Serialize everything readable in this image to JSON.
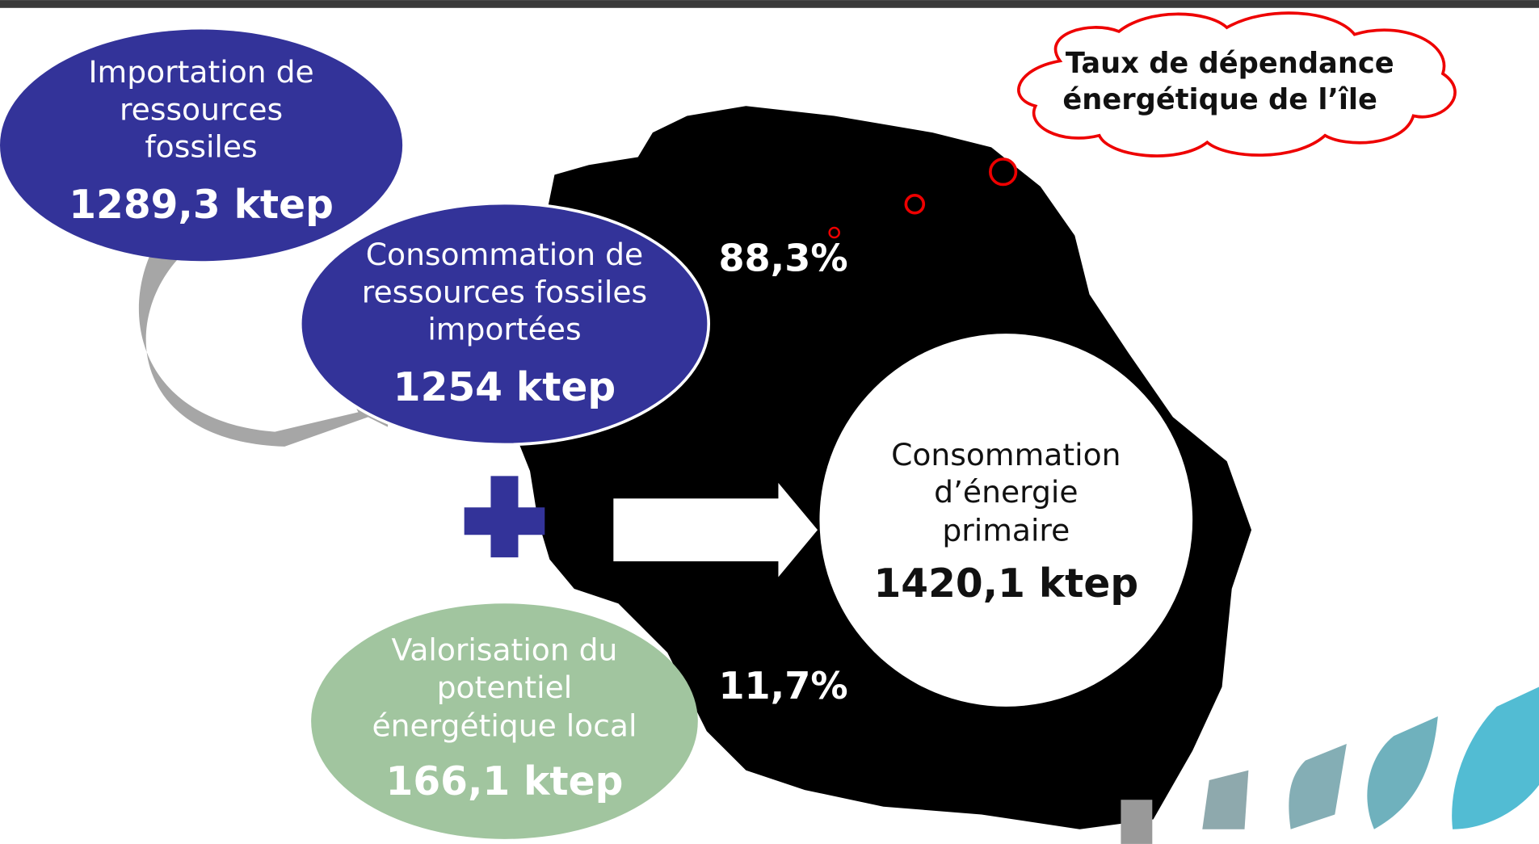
{
  "nodes": [
    {
      "label_lines": [
        "Importation de",
        "ressources",
        "fossiles"
      ],
      "value": "1289,3 ktep"
    },
    {
      "label_lines": [
        "Consommation de",
        "ressources fossiles",
        "importées"
      ],
      "value": "1254 ktep"
    },
    {
      "label_lines": [
        "Valorisation du",
        "potentiel",
        "énergétique local"
      ],
      "value": "166,1 ktep"
    },
    {
      "label_lines": [
        "Consommation",
        "d’énergie",
        "primaire"
      ],
      "value": "1420,1 ktep"
    }
  ],
  "callout": {
    "lines": [
      "Taux de dépendance",
      "énergétique de l’île"
    ]
  },
  "shares": [
    "88,3%",
    "11,7%"
  ]
}
